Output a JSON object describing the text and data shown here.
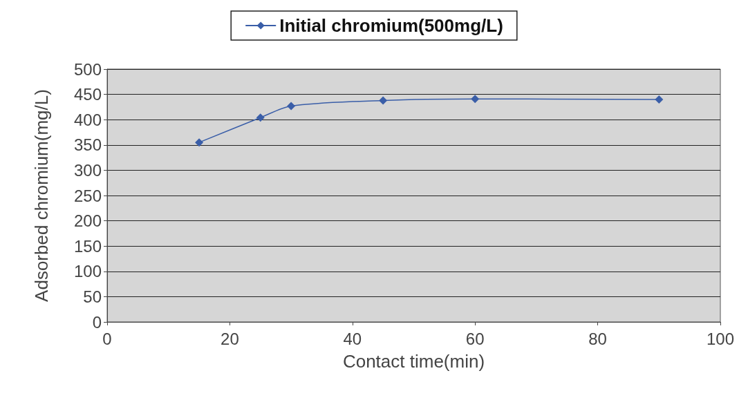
{
  "chart_data": {
    "type": "line",
    "xlabel": "Contact time(min)",
    "ylabel": "Adsorbed chromium(mg/L)",
    "x": [
      15,
      25,
      30,
      45,
      60,
      90
    ],
    "series": [
      {
        "name": "Initial chromium(500mg/L)",
        "color": "#3a5ea8",
        "values": [
          355,
          404,
          427,
          438,
          441,
          440
        ]
      }
    ],
    "xlim": [
      0,
      100
    ],
    "xticks": [
      0,
      20,
      40,
      60,
      80,
      100
    ],
    "ylim": [
      0,
      500
    ],
    "yticks": [
      0,
      50,
      100,
      150,
      200,
      250,
      300,
      350,
      400,
      450,
      500
    ],
    "grid": "y",
    "legend": "top",
    "marker": "diamond",
    "line_style": "solid"
  }
}
